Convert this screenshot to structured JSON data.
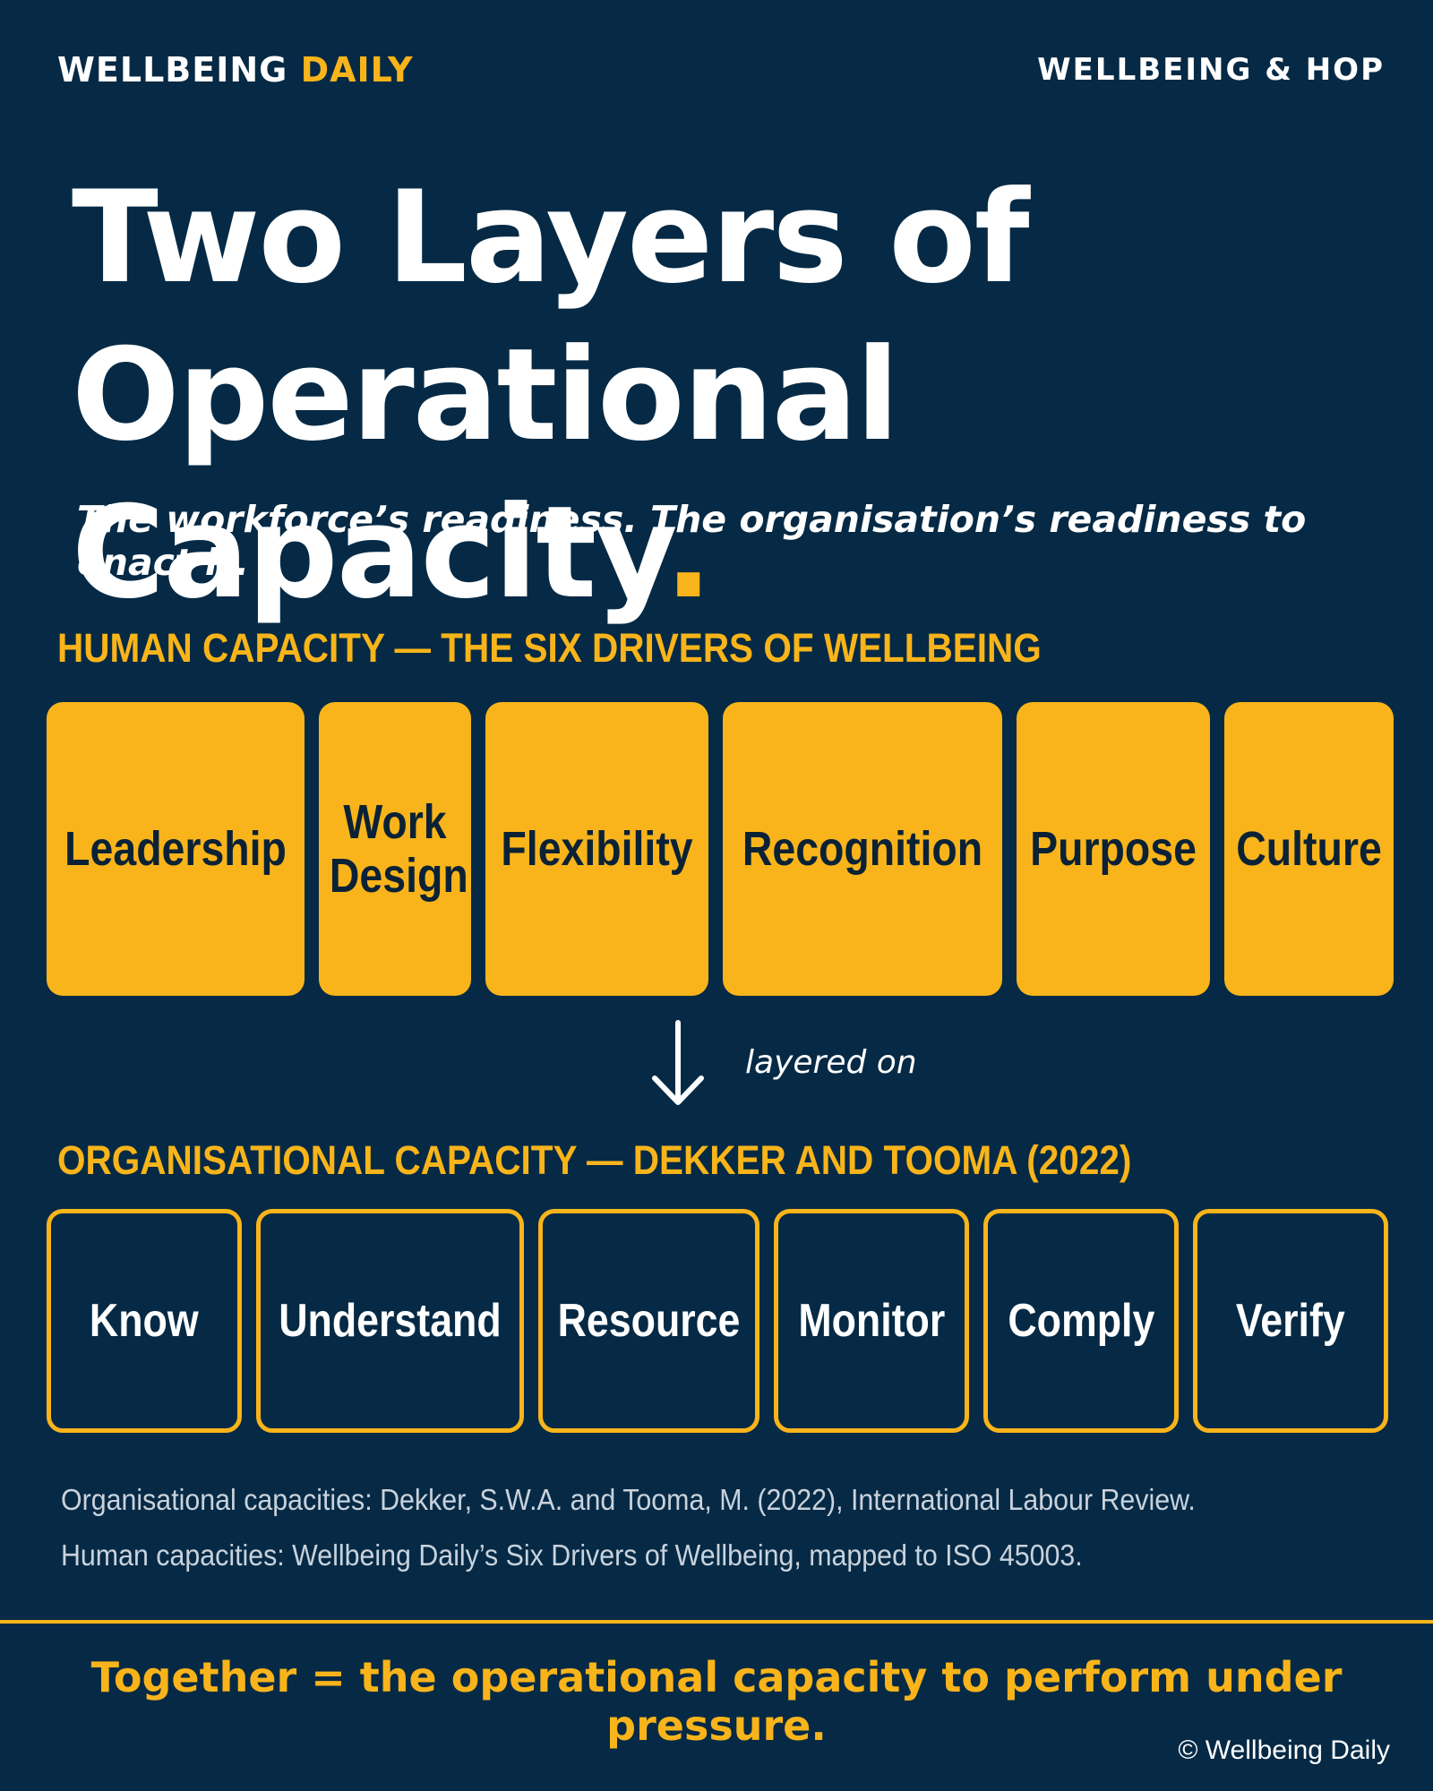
{
  "header": {
    "brand_main": "WELLBEING",
    "brand_accent": "DAILY",
    "tag": "WELLBEING & HOP"
  },
  "title": {
    "line1": "Two Layers of",
    "line2": "Operational Capacity",
    "period": "."
  },
  "subtitle": "The workforce’s readiness. The organisation’s readiness to enact it.",
  "human_section": {
    "heading": "HUMAN CAPACITY — THE SIX DRIVERS OF WELLBEING",
    "cards": [
      "Leadership",
      "Work Design",
      "Flexibility",
      "Recognition",
      "Purpose",
      "Culture"
    ]
  },
  "connector": {
    "icon": "arrow-down-icon",
    "label": "layered on"
  },
  "org_section": {
    "heading": "ORGANISATIONAL CAPACITY — DEKKER AND TOOMA (2022)",
    "cards": [
      "Know",
      "Understand",
      "Resource",
      "Monitor",
      "Comply",
      "Verify"
    ]
  },
  "sources": {
    "line1": "Organisational capacities: Dekker, S.W.A. and Tooma, M. (2022), International Labour Review.",
    "line2": "Human capacities: Wellbeing Daily’s Six Drivers of Wellbeing, mapped to ISO 45003."
  },
  "together": "Together = the operational capacity to perform under pressure.",
  "copyright": "© Wellbeing Daily",
  "colors": {
    "background": "#062a45",
    "accent": "#f8b41a",
    "text": "#ffffff"
  }
}
